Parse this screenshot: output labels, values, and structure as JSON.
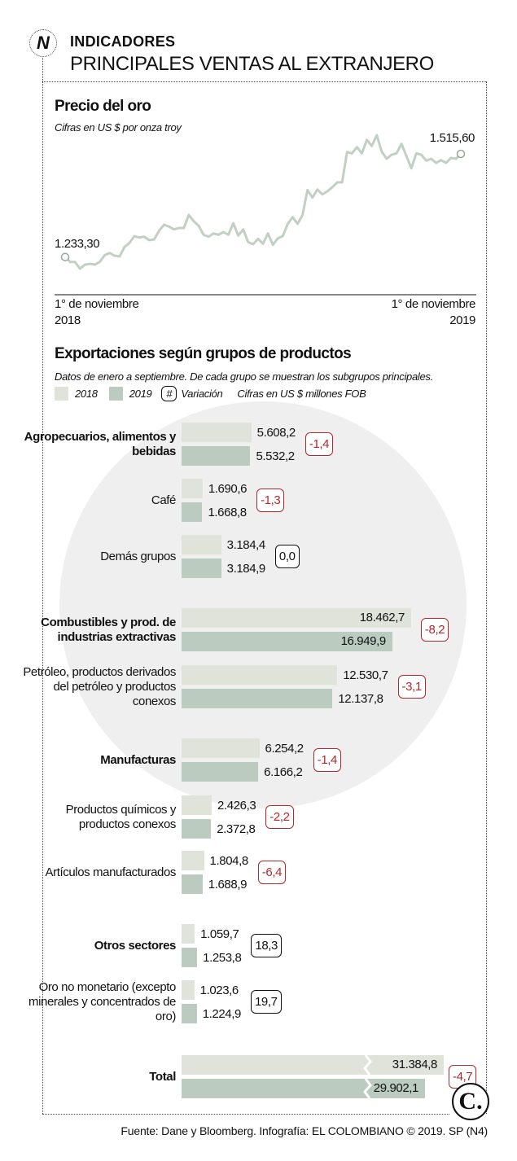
{
  "header": {
    "kicker": "INDICADORES",
    "headline": "PRINCIPALES VENTAS AL EXTRANJERO",
    "logo_letter": "N"
  },
  "colors": {
    "y2018": "#dfe3da",
    "y2019": "#bccbbf",
    "line": "#c2d0c4",
    "negative": "#b3282d"
  },
  "chart_data": [
    {
      "type": "line",
      "title": "Precio del oro",
      "subtitle": "Cifras en US $ por onza troy",
      "start_label": "1.233,30",
      "end_label": "1.515,60",
      "x_start": {
        "line1": "1° de noviembre",
        "line2": "2018"
      },
      "x_end": {
        "line1": "1° de noviembre",
        "line2": "2019"
      },
      "values": [
        1233.3,
        1219.9,
        1219.9,
        1201.3,
        1212.5,
        1214.7,
        1212.5,
        1219.9,
        1238.5,
        1244.4,
        1237.0,
        1234.8,
        1260.8,
        1271.9,
        1290.5,
        1286.8,
        1289.0,
        1279.4,
        1281.6,
        1305.3,
        1321.7,
        1316.5,
        1309.1,
        1312.8,
        1312.8,
        1348.4,
        1331.3,
        1318.7,
        1294.2,
        1289.0,
        1297.9,
        1294.2,
        1301.6,
        1294.2,
        1326.1,
        1292.0,
        1309.1,
        1274.1,
        1268.2,
        1283.1,
        1269.7,
        1297.9,
        1266.7,
        1284.5,
        1290.5,
        1323.9,
        1342.5,
        1323.9,
        1348.4,
        1416.7,
        1396.0,
        1418.2,
        1404.9,
        1413.0,
        1424.2,
        1437.5,
        1437.5,
        1520.7,
        1517.0,
        1534.1,
        1517.0,
        1554.1,
        1537.1,
        1566.8,
        1522.2,
        1502.2,
        1513.3,
        1517.0,
        1543.0,
        1509.6,
        1476.2,
        1517.0,
        1513.3,
        1497.0,
        1502.2,
        1491.0,
        1498.4,
        1491.0,
        1504.4,
        1502.2,
        1515.6
      ]
    },
    {
      "type": "bar",
      "title": "Exportaciones según grupos de productos",
      "subtitle": "Datos de enero a septiembre. De cada grupo se muestran los subgrupos principales.",
      "legend": {
        "y2018": "2018",
        "y2019": "2019",
        "hash": "#",
        "variation": "Variación",
        "unit": "Cifras en US $ millones FOB"
      },
      "rows": [
        {
          "label": "Agropecuarios, alimentos y bebidas",
          "group": true,
          "v2018": 5608.2,
          "v2019": 5532.2,
          "t2018": "5.608,2",
          "t2019": "5.532,2",
          "variation": "-1,4"
        },
        {
          "label": "Café",
          "group": false,
          "v2018": 1690.6,
          "v2019": 1668.8,
          "t2018": "1.690,6",
          "t2019": "1.668,8",
          "variation": "-1,3"
        },
        {
          "label": "Demás grupos",
          "group": false,
          "v2018": 3184.4,
          "v2019": 3184.9,
          "t2018": "3.184,4",
          "t2019": "3.184,9",
          "variation": "0,0"
        },
        {
          "label": "Combustibles y prod. de industrias extractivas",
          "group": true,
          "v2018": 18462.7,
          "v2019": 16949.9,
          "t2018": "18.462,7",
          "t2019": "16.949,9",
          "variation": "-8,2"
        },
        {
          "label": "Petróleo, productos derivados del petróleo y productos conexos",
          "group": false,
          "v2018": 12530.7,
          "v2019": 12137.8,
          "t2018": "12.530,7",
          "t2019": "12.137,8",
          "variation": "-3,1"
        },
        {
          "label": "Manufacturas",
          "group": true,
          "v2018": 6254.2,
          "v2019": 6166.2,
          "t2018": "6.254,2",
          "t2019": "6.166,2",
          "variation": "-1,4"
        },
        {
          "label": "Productos químicos y productos conexos",
          "group": false,
          "v2018": 2426.3,
          "v2019": 2372.8,
          "t2018": "2.426,3",
          "t2019": "2.372,8",
          "variation": "-2,2"
        },
        {
          "label": "Artículos manufacturados",
          "group": false,
          "v2018": 1804.8,
          "v2019": 1688.9,
          "t2018": "1.804,8",
          "t2019": "1.688,9",
          "variation": "-6,4"
        },
        {
          "label": "Otros sectores",
          "group": true,
          "v2018": 1059.7,
          "v2019": 1253.8,
          "t2018": "1.059,7",
          "t2019": "1.253,8",
          "variation": "18,3"
        },
        {
          "label": "Oro no monetario (excepto minerales y concentrados de oro)",
          "group": false,
          "v2018": 1023.6,
          "v2019": 1224.9,
          "t2018": "1.023,6",
          "t2019": "1.224,9",
          "variation": "19,7"
        },
        {
          "label": "Total",
          "group": true,
          "v2018": 31384.8,
          "v2019": 29902.1,
          "t2018": "31.384,8",
          "t2019": "29.902,1",
          "variation": "-4,7",
          "broken_axis": true
        }
      ]
    }
  ],
  "footer": {
    "source": "Fuente: Dane y Bloomberg. Infografía: EL COLOMBIANO © 2019. SP (N4)",
    "logo_letter": "C."
  }
}
